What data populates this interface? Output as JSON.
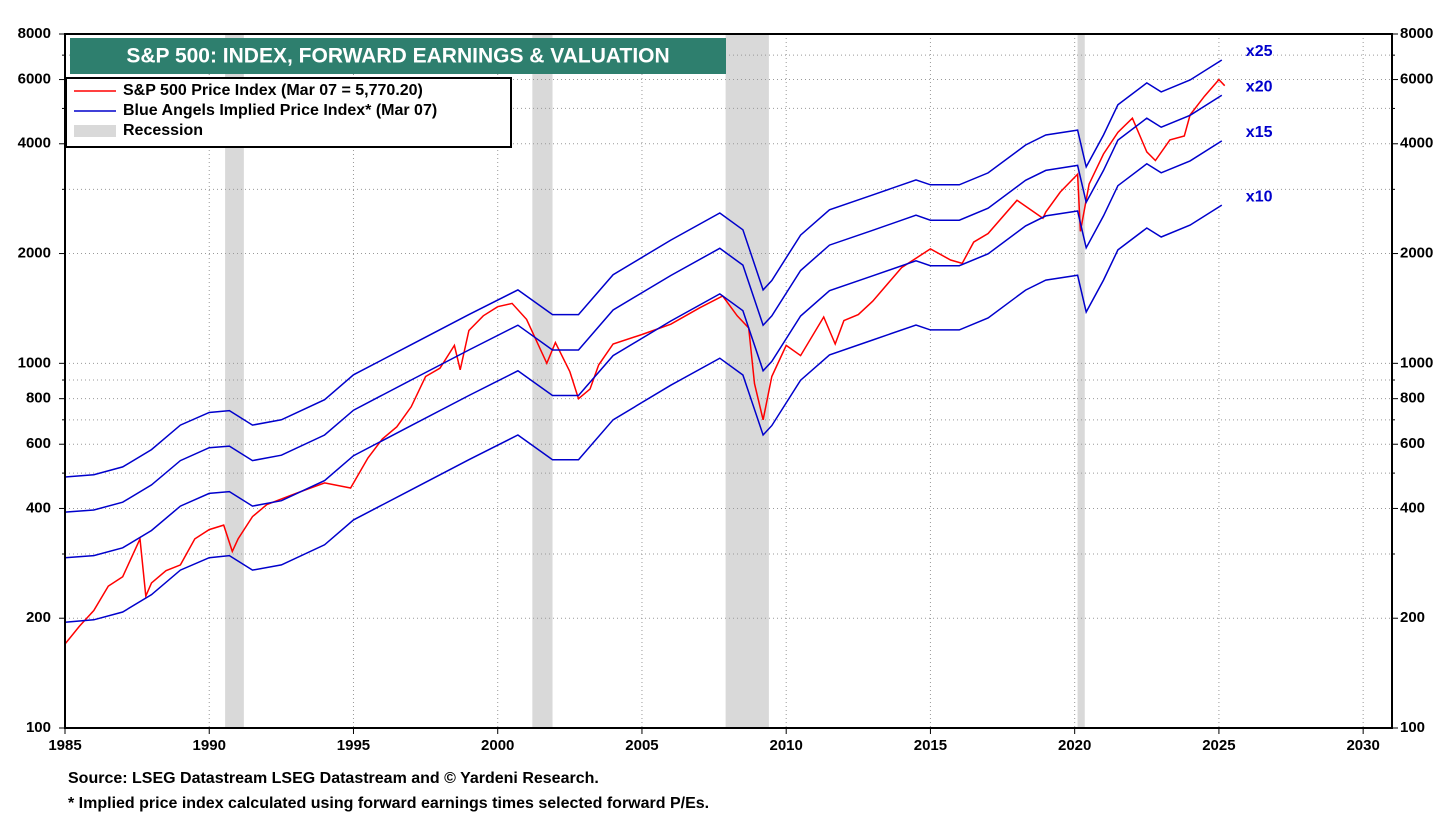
{
  "chart_data": {
    "type": "line",
    "title": "S&P 500: INDEX, FORWARD EARNINGS & VALUATION",
    "source": "Source: LSEG Datastream LSEG Datastream and © Yardeni Research.",
    "footnote": "* Implied price index calculated using forward earnings times selected forward P/Es.",
    "ylog": true,
    "ylim": [
      100,
      8000
    ],
    "yticks": [
      100,
      200,
      400,
      600,
      800,
      1000,
      2000,
      4000,
      6000,
      8000
    ],
    "minor_yticks": [
      300,
      500,
      700,
      900,
      3000,
      5000,
      7000
    ],
    "xlim": [
      1985,
      2031
    ],
    "xticks": [
      1985,
      1990,
      1995,
      2000,
      2005,
      2010,
      2015,
      2020,
      2025,
      2030
    ],
    "grid": true,
    "legend": "upper left",
    "recession": {
      "name": "Recession",
      "color": "#d9d9d9",
      "spans": [
        [
          1990.55,
          1991.2
        ],
        [
          2001.2,
          2001.9
        ],
        [
          2007.9,
          2009.4
        ],
        [
          2020.1,
          2020.35
        ]
      ]
    },
    "series": [
      {
        "name": "S&P 500 Price Index (Mar 07 = 5,770.20)",
        "color": "#ff0000",
        "x": [
          1985,
          1985.5,
          1986,
          1986.5,
          1987,
          1987.6,
          1987.8,
          1988,
          1988.5,
          1989,
          1989.5,
          1990,
          1990.5,
          1990.8,
          1991,
          1991.5,
          1992,
          1993,
          1994,
          1994.9,
          1995.5,
          1996,
          1996.5,
          1997,
          1997.5,
          1998,
          1998.5,
          1998.7,
          1999,
          1999.5,
          2000,
          2000.5,
          2001,
          2001.7,
          2002,
          2002.5,
          2002.8,
          2003.2,
          2003.5,
          2004,
          2005,
          2006,
          2007,
          2007.8,
          2008.3,
          2008.7,
          2008.9,
          2009.2,
          2009.5,
          2010,
          2010.5,
          2011.3,
          2011.7,
          2012,
          2012.5,
          2013,
          2014,
          2015,
          2015.7,
          2016.1,
          2016.5,
          2017,
          2018,
          2018.9,
          2019,
          2019.5,
          2020.1,
          2020.2,
          2020.5,
          2021,
          2021.5,
          2022,
          2022.5,
          2022.8,
          2023.3,
          2023.8,
          2024,
          2024.5,
          2025,
          2025.2
        ],
        "values": [
          170,
          190,
          210,
          245,
          260,
          330,
          230,
          250,
          270,
          280,
          330,
          350,
          360,
          305,
          330,
          380,
          410,
          440,
          470,
          455,
          550,
          620,
          670,
          760,
          920,
          970,
          1120,
          960,
          1230,
          1350,
          1430,
          1460,
          1320,
          1000,
          1140,
          950,
          800,
          850,
          990,
          1130,
          1200,
          1280,
          1420,
          1530,
          1350,
          1250,
          880,
          700,
          920,
          1120,
          1050,
          1340,
          1130,
          1310,
          1360,
          1480,
          1830,
          2060,
          1920,
          1880,
          2150,
          2270,
          2800,
          2500,
          2600,
          2950,
          3300,
          2300,
          3100,
          3750,
          4300,
          4700,
          3800,
          3600,
          4100,
          4200,
          4800,
          5400,
          6000,
          5770.2
        ]
      },
      {
        "name": "Blue Angels Implied Price Index* (Mar 07)",
        "color": "#0000cc",
        "x": [
          1985,
          1986,
          1987,
          1988,
          1989,
          1990,
          1990.7,
          1991.5,
          1992.5,
          1994,
          1995,
          1997,
          1999,
          2000.7,
          2001.9,
          2002.8,
          2004,
          2006,
          2007.7,
          2008.5,
          2009.2,
          2009.5,
          2010.5,
          2011.5,
          2013,
          2014.5,
          2015,
          2016,
          2017,
          2018.3,
          2019,
          2020.1,
          2020.4,
          2021,
          2021.5,
          2022.5,
          2023,
          2024,
          2025.1
        ],
        "bands": [
          {
            "label": "x25",
            "values": [
              488,
              495,
              520,
              580,
              677,
              733,
              742,
              677,
              700,
              795,
              930,
              1125,
              1360,
              1590,
              1360,
              1360,
              1750,
              2177,
              2583,
              2323,
              1590,
              1687,
              2247,
              2637,
              2897,
              3185,
              3087,
              3087,
              3328,
              3970,
              4227,
              4362,
              3457,
              4227,
              5117,
              5875,
              5550,
              5983,
              6790
            ]
          },
          {
            "label": "x20",
            "values": [
              391,
              396,
              416,
              464,
              541,
              587,
              593,
              541,
              560,
              636,
              744,
              900,
              1088,
              1272,
              1088,
              1088,
              1400,
              1741,
              2067,
              1859,
              1272,
              1349,
              1797,
              2109,
              2317,
              2548,
              2469,
              2469,
              2663,
              3176,
              3381,
              3489,
              2765,
              3381,
              4093,
              4700,
              4440,
              4787,
              5432
            ]
          },
          {
            "label": "x15",
            "values": [
              293,
              297,
              312,
              348,
              406,
              440,
              445,
              406,
              420,
              477,
              558,
              675,
              816,
              954,
              816,
              816,
              1050,
              1306,
              1550,
              1394,
              954,
              1012,
              1348,
              1582,
              1738,
              1911,
              1852,
              1852,
              1997,
              2382,
              2536,
              2617,
              2074,
              2536,
              3070,
              3525,
              3330,
              3590,
              4074
            ]
          },
          {
            "label": "x10",
            "values": [
              195,
              198,
              208,
              232,
              271,
              293,
              297,
              271,
              280,
              318,
              372,
              450,
              544,
              636,
              544,
              544,
              700,
              871,
              1033,
              929,
              636,
              675,
              899,
              1055,
              1159,
              1274,
              1235,
              1235,
              1331,
              1588,
              1691,
              1745,
              1383,
              1691,
              2047,
              2350,
              2220,
              2393,
              2716
            ]
          }
        ]
      }
    ]
  }
}
